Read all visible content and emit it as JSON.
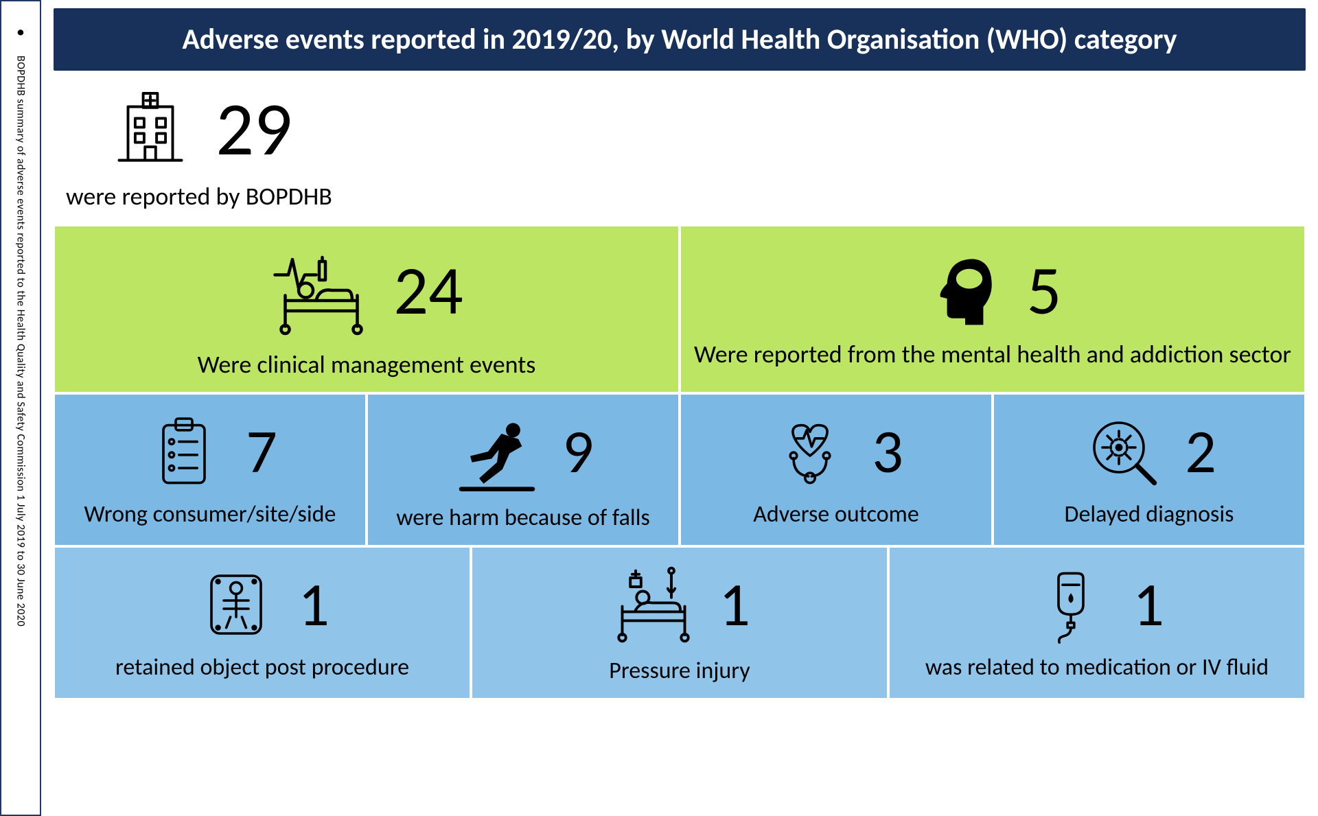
{
  "sidebar": {
    "text": "BOPDHB summary of adverse events reported to the Health Quality and Safety Commission 1 July 2019 to 30 June 2020"
  },
  "title": {
    "text": "Adverse events reported in 2019/20, by World Health Organisation (WHO) category",
    "bg_color": "#18315b",
    "font_size": 42
  },
  "row1": {
    "bg_color": "#5bd3d9",
    "value": "29",
    "caption": "were reported by BOPDHB",
    "icon": "hospital",
    "value_font_size": 110,
    "caption_font_size": 36,
    "icon_size": 130
  },
  "row2": {
    "bg_color": "#bce563",
    "cells": [
      {
        "value": "24",
        "caption": "Were clinical management events",
        "icon": "hospital-bed",
        "value_font_size": 100,
        "caption_font_size": 36,
        "icon_size": 150
      },
      {
        "value": "5",
        "caption": "Were reported from the mental health and addiction sector",
        "icon": "head-brain",
        "value_font_size": 100,
        "caption_font_size": 36,
        "icon_size": 120
      }
    ]
  },
  "row3": {
    "bg_color": "#7bb8e3",
    "cells": [
      {
        "value": "7",
        "caption": "Wrong consumer/site/side",
        "icon": "clipboard",
        "value_font_size": 90,
        "caption_font_size": 34,
        "icon_size": 120
      },
      {
        "value": "9",
        "caption": "were harm because of falls",
        "icon": "falling-person",
        "value_font_size": 90,
        "caption_font_size": 34,
        "icon_size": 130
      },
      {
        "value": "3",
        "caption": "Adverse outcome",
        "icon": "stethoscope-heart",
        "value_font_size": 90,
        "caption_font_size": 34,
        "icon_size": 120
      },
      {
        "value": "2",
        "caption": "Delayed diagnosis",
        "icon": "virus-lens",
        "value_font_size": 90,
        "caption_font_size": 34,
        "icon_size": 120
      }
    ]
  },
  "row4": {
    "bg_color": "#91c4e9",
    "cells": [
      {
        "value": "1",
        "caption": "retained object post procedure",
        "icon": "xray",
        "value_font_size": 90,
        "caption_font_size": 34,
        "icon_size": 120
      },
      {
        "value": "1",
        "caption": "Pressure injury",
        "icon": "patient-bed",
        "value_font_size": 90,
        "caption_font_size": 34,
        "icon_size": 130
      },
      {
        "value": "1",
        "caption": "was related to medication or IV fluid",
        "icon": "iv-bag",
        "value_font_size": 90,
        "caption_font_size": 34,
        "icon_size": 120
      }
    ]
  },
  "icon_stroke": "#000000",
  "icon_stroke_width": 3
}
